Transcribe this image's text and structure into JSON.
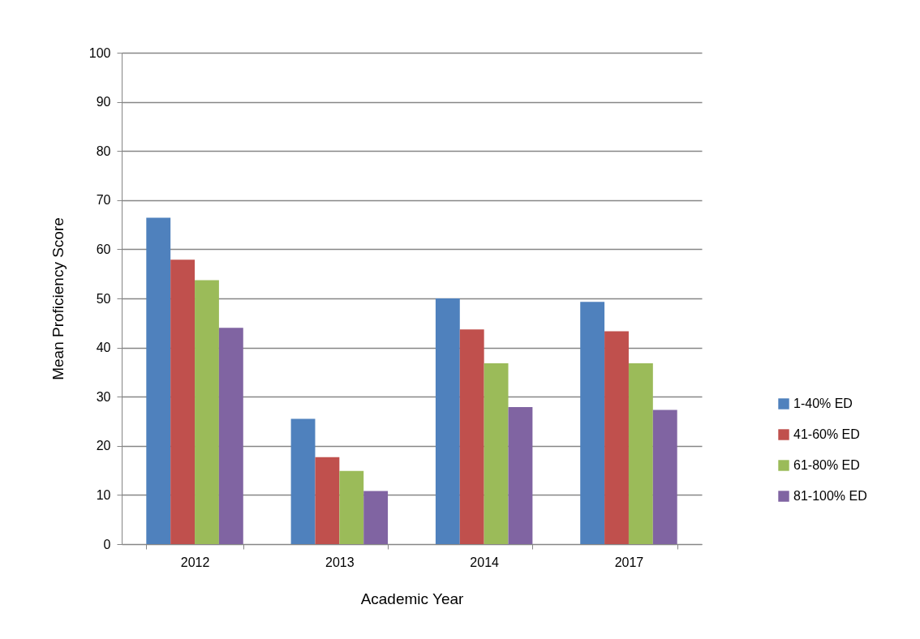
{
  "chart_data": {
    "type": "bar",
    "xlabel": "Academic Year",
    "ylabel": "Mean Proficiency Score",
    "categories": [
      "2012",
      "2013",
      "2014",
      "2017"
    ],
    "series": [
      {
        "name": "1-40% ED",
        "color": "#4f81bd",
        "values": [
          66.4,
          25.5,
          50.0,
          49.3
        ]
      },
      {
        "name": "41-60% ED",
        "color": "#c0504d",
        "values": [
          57.9,
          17.7,
          43.7,
          43.3
        ]
      },
      {
        "name": "61-80% ED",
        "color": "#9bbb59",
        "values": [
          53.7,
          14.9,
          36.8,
          36.8
        ]
      },
      {
        "name": "81-100% ED",
        "color": "#8064a2",
        "values": [
          44.0,
          10.8,
          27.9,
          27.3
        ]
      }
    ],
    "ylim": [
      0,
      100
    ],
    "yticks": [
      0,
      10,
      20,
      30,
      40,
      50,
      60,
      70,
      80,
      90,
      100
    ],
    "grid": "y",
    "legend": "right"
  }
}
